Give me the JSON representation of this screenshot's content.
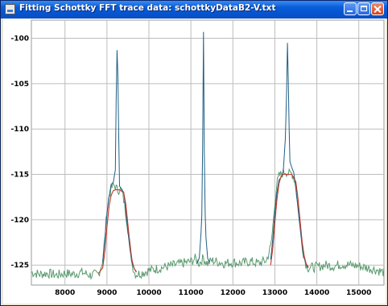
{
  "window": {
    "title": "Fitting Schottky FFT trace data: schottkyDataB2-V.txt"
  },
  "icons": {
    "app": "java-cup-icon",
    "minimize": "minimize-icon",
    "maximize": "maximize-icon",
    "close": "close-icon"
  },
  "colors": {
    "titlebar": "#0554d0",
    "grid": "#bdbdbd",
    "data_line": "#5a9a6e",
    "fit_line": "#1f5f86",
    "model_line": "#c0392b"
  },
  "chart_data": {
    "type": "line",
    "xlim": [
      7200,
      15600
    ],
    "ylim": [
      -127.2,
      -98.0
    ],
    "x_ticks": [
      8000,
      9000,
      10000,
      11000,
      12000,
      13000,
      14000,
      15000
    ],
    "x_tick_labels": [
      "8000",
      "9000",
      "10000",
      "11000",
      "12000",
      "13000",
      "14000",
      "15000"
    ],
    "y_ticks": [
      -100,
      -105,
      -110,
      -115,
      -120,
      -125
    ],
    "y_tick_labels": [
      "-100",
      "-105",
      "-110",
      "-115",
      "-120",
      "-125"
    ],
    "grid": true,
    "series": [
      {
        "x": [
          7200,
          7400,
          7600,
          7800,
          8000,
          8200,
          8400,
          8600,
          8800,
          8900,
          8950,
          9000,
          9050,
          9100,
          9150,
          9200,
          9250,
          9300,
          9350,
          9400,
          9450,
          9500,
          9550,
          9600,
          9650,
          9700,
          9800,
          10000,
          10200,
          10400,
          10600,
          10800,
          11000,
          11100,
          11200,
          11250,
          11300,
          11350,
          11400,
          11500,
          11600,
          11800,
          12000,
          12200,
          12400,
          12600,
          12800,
          12900,
          12950,
          13000,
          13050,
          13100,
          13150,
          13200,
          13250,
          13300,
          13350,
          13400,
          13450,
          13500,
          13550,
          13600,
          13650,
          13700,
          13750,
          13800,
          14000,
          14200,
          14400,
          14600,
          14800,
          15000,
          15200,
          15400,
          15600
        ],
        "y": [
          -125.8,
          -126.0,
          -125.9,
          -126.1,
          -125.9,
          -126.0,
          -125.8,
          -126.1,
          -126.0,
          -124.5,
          -122.0,
          -119.0,
          -117.4,
          -116.6,
          -116.2,
          -116.3,
          -116.8,
          -116.6,
          -116.9,
          -117.8,
          -119.3,
          -121.0,
          -123.0,
          -124.8,
          -125.8,
          -126.0,
          -125.9,
          -125.6,
          -125.4,
          -125.2,
          -125.0,
          -124.8,
          -124.6,
          -124.3,
          -124.8,
          -124.5,
          -124.2,
          -124.6,
          -124.8,
          -124.5,
          -124.6,
          -124.8,
          -124.7,
          -124.8,
          -124.6,
          -124.8,
          -124.5,
          -123.0,
          -121.0,
          -118.0,
          -116.0,
          -115.2,
          -115.0,
          -114.8,
          -114.6,
          -114.8,
          -115.0,
          -114.9,
          -115.2,
          -116.4,
          -118.5,
          -120.6,
          -122.8,
          -124.2,
          -125.0,
          -125.3,
          -125.2,
          -125.0,
          -125.1,
          -124.9,
          -125.0,
          -125.1,
          -125.3,
          -125.5,
          -125.8
        ]
      },
      {
        "x": [
          8900,
          8950,
          9000,
          9050,
          9100,
          9150,
          9200,
          9220,
          9240,
          9260,
          9280,
          9300,
          9350,
          9400,
          9450,
          9500,
          9550,
          9600,
          9650,
          9700,
          11150,
          11200,
          11240,
          11260,
          11280,
          11300,
          11320,
          11340,
          11360,
          11400,
          11450,
          12900,
          12950,
          13000,
          13050,
          13100,
          13150,
          13200,
          13250,
          13280,
          13300,
          13320,
          13340,
          13360,
          13400,
          13450,
          13500,
          13550,
          13600,
          13650,
          13700,
          13750,
          13800
        ],
        "y": [
          -124.7,
          -122.1,
          -119.2,
          -117.5,
          -116.1,
          -115.9,
          -114.5,
          -106.8,
          -101.3,
          -104.0,
          -110.8,
          -116.3,
          -116.6,
          -117.0,
          -119.0,
          -121.3,
          -123.3,
          -124.8,
          -125.4,
          -125.7,
          -124.8,
          -124.2,
          -121.5,
          -119.5,
          -112.0,
          -99.3,
          -112.5,
          -119.4,
          -122.0,
          -124.3,
          -124.6,
          -124.4,
          -122.2,
          -119.2,
          -117.0,
          -115.6,
          -115.3,
          -114.7,
          -111.0,
          -106.0,
          -100.5,
          -104.5,
          -110.0,
          -113.6,
          -114.2,
          -114.8,
          -116.4,
          -118.7,
          -120.8,
          -122.9,
          -124.2,
          -125.0,
          -125.3
        ]
      },
      {
        "x": [
          7200,
          8800,
          8900,
          8950,
          9000,
          9050,
          9100,
          9150,
          9200,
          9300,
          9400,
          9450,
          9500,
          9550,
          9600,
          9650,
          9700,
          12900,
          12950,
          13000,
          13050,
          13100,
          13150,
          13200,
          13300,
          13400,
          13500,
          13550,
          13600,
          13650,
          13700,
          13750,
          13800,
          15600
        ],
        "y": [
          -125.9,
          -125.9,
          -125.3,
          -123.5,
          -120.8,
          -118.5,
          -117.3,
          -116.8,
          -116.7,
          -116.7,
          -117.0,
          -118.3,
          -120.5,
          -122.8,
          -124.5,
          -125.4,
          -125.8,
          -125.0,
          -123.2,
          -120.4,
          -117.8,
          -116.0,
          -115.2,
          -115.0,
          -115.0,
          -115.0,
          -115.8,
          -117.6,
          -120.0,
          -122.4,
          -124.0,
          -124.9,
          -125.2,
          -125.2
        ]
      }
    ]
  }
}
